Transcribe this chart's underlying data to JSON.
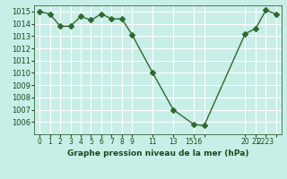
{
  "x": [
    0,
    1,
    2,
    3,
    4,
    5,
    6,
    7,
    8,
    9,
    11,
    13,
    15,
    16,
    20,
    21,
    22,
    23
  ],
  "y": [
    1015.0,
    1014.8,
    1013.8,
    1013.8,
    1014.6,
    1014.3,
    1014.8,
    1014.4,
    1014.4,
    1013.1,
    1010.0,
    1007.0,
    1005.8,
    1005.7,
    1013.2,
    1013.6,
    1015.1,
    1014.8
  ],
  "line_color": "#2d6a2d",
  "marker": "D",
  "marker_size": 3,
  "bg_color": "#c8eee8",
  "grid_color": "#ffffff",
  "xlabel": "Graphe pression niveau de la mer (hPa)",
  "xlabel_color": "#1a4a1a",
  "tick_color": "#1a4a1a",
  "xtick_positions": [
    0,
    1,
    2,
    3,
    4,
    5,
    6,
    7,
    8,
    9,
    11,
    13,
    15,
    16,
    20,
    21,
    22,
    23
  ],
  "xtick_labels": [
    "0",
    "1",
    "2",
    "3",
    "4",
    "5",
    "6",
    "7",
    "8",
    "9",
    "11",
    "13",
    "1516",
    "",
    "20",
    "21",
    "2223",
    ""
  ],
  "ylim": [
    1005.0,
    1015.5
  ],
  "yticks": [
    1006,
    1007,
    1008,
    1009,
    1010,
    1011,
    1012,
    1013,
    1014,
    1015
  ],
  "axis_bg": "#c8eee8",
  "xlim": [
    -0.5,
    23.5
  ]
}
